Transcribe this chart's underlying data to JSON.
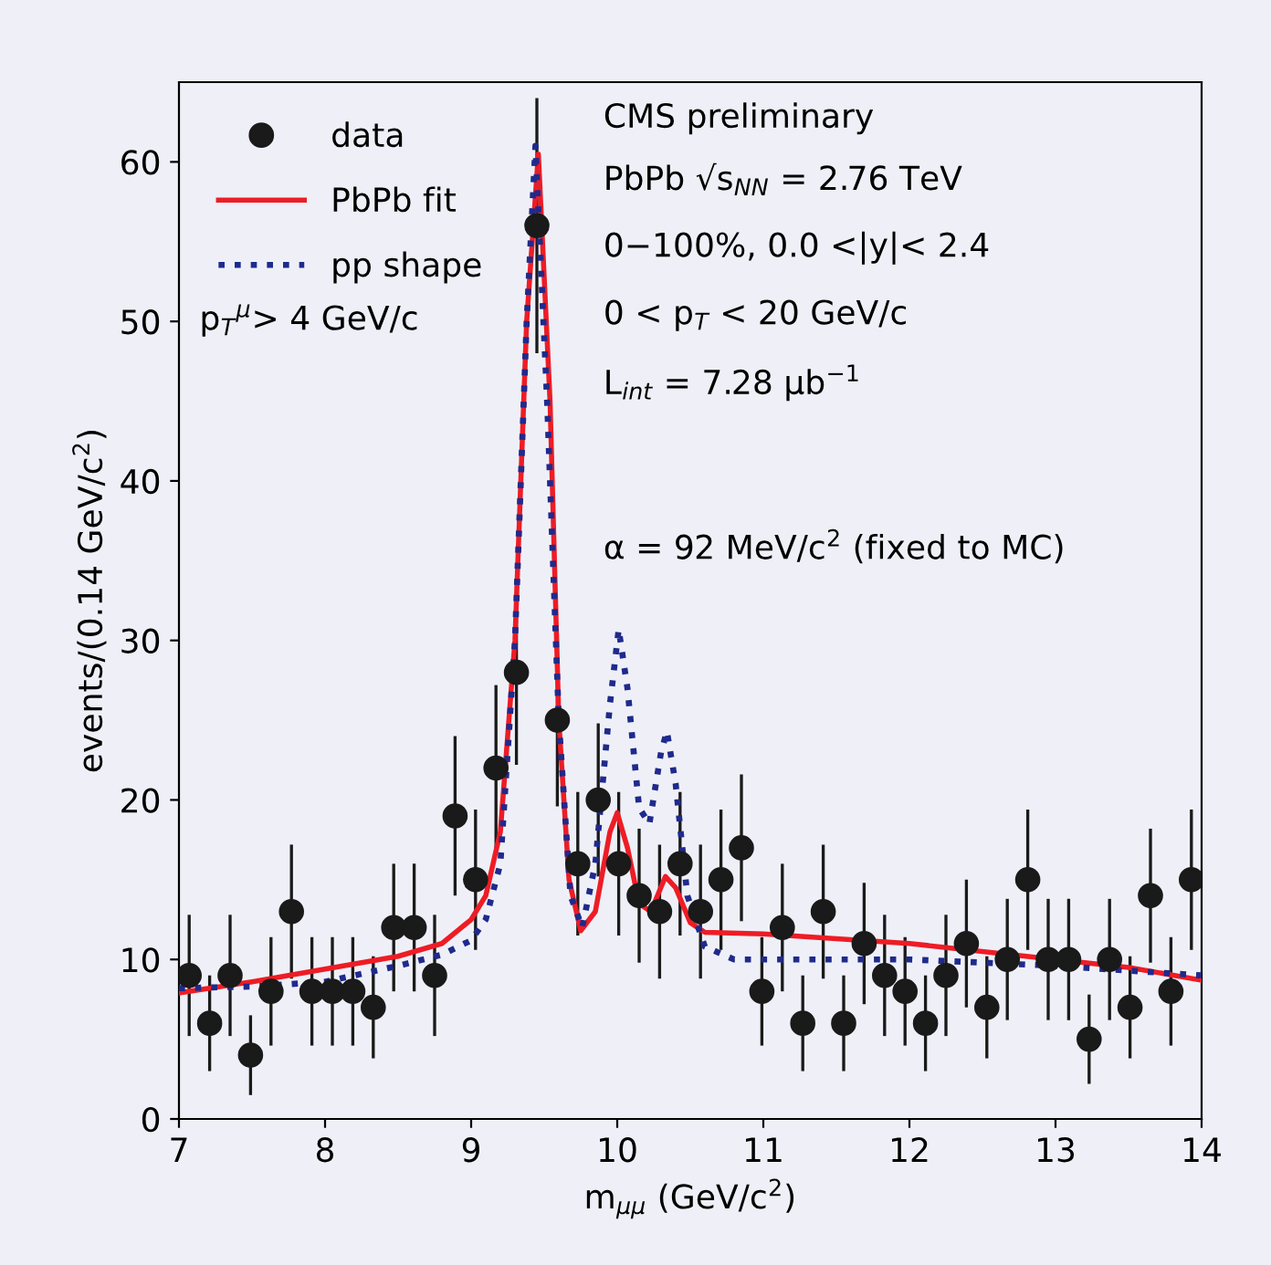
{
  "chart_data": {
    "type": "scatter",
    "xlabel": "m$_{μμ}$ (GeV/c$^{2}$)",
    "ylabel": "events/(0.14 GeV/c$^{2}$)",
    "xlim": [
      7,
      14
    ],
    "xticks": [
      7,
      8,
      9,
      10,
      11,
      12,
      13,
      14
    ],
    "ylim": [
      0,
      65
    ],
    "yticks": [
      0,
      10,
      20,
      30,
      40,
      50,
      60
    ],
    "grid": false,
    "legend": "top left",
    "annotations": [
      "p$_{T}$$^{μ}$> 4 GeV/c",
      "CMS preliminary",
      "PbPb √s$_{NN}$ = 2.76 TeV",
      "0−100%, 0.0 <|y|< 2.4",
      "0 < p$_{T}$ < 20 GeV/c",
      "L$_{int}$ = 7.28 μb$^{−1}$",
      "α = 92 MeV/c$^{2}$ (fixed to MC)"
    ],
    "series": [
      {
        "name": "data",
        "color": "#1a1a1a",
        "marker": "circle",
        "x": [
          7.07,
          7.21,
          7.35,
          7.49,
          7.63,
          7.77,
          7.91,
          8.05,
          8.19,
          8.33,
          8.47,
          8.61,
          8.75,
          8.89,
          9.03,
          9.17,
          9.31,
          9.45,
          9.59,
          9.73,
          9.87,
          10.01,
          10.15,
          10.29,
          10.43,
          10.57,
          10.71,
          10.85,
          10.99,
          11.13,
          11.27,
          11.41,
          11.55,
          11.69,
          11.83,
          11.97,
          12.11,
          12.25,
          12.39,
          12.53,
          12.67,
          12.81,
          12.95,
          13.09,
          13.23,
          13.37,
          13.51,
          13.65,
          13.79,
          13.93
        ],
        "values": [
          9,
          6,
          9,
          4,
          8,
          13,
          8,
          8,
          8,
          7,
          12,
          12,
          9,
          19,
          15,
          22,
          28,
          56,
          25,
          16,
          20,
          16,
          14,
          13,
          16,
          13,
          15,
          17,
          8,
          12,
          6,
          13,
          6,
          11,
          9,
          8,
          6,
          9,
          11,
          7,
          10,
          15,
          10,
          10,
          5,
          10,
          7,
          14,
          8,
          15
        ],
        "errors": [
          3.8,
          3.0,
          3.8,
          2.5,
          3.4,
          4.2,
          3.4,
          3.4,
          3.4,
          3.2,
          4.0,
          4.0,
          3.8,
          5.0,
          4.4,
          5.2,
          5.8,
          8.0,
          5.4,
          4.5,
          4.8,
          4.5,
          4.2,
          4.2,
          4.5,
          4.2,
          4.4,
          4.6,
          3.4,
          4.0,
          3.0,
          4.2,
          3.0,
          3.8,
          3.8,
          3.4,
          3.0,
          3.8,
          4.0,
          3.2,
          3.8,
          4.4,
          3.8,
          3.8,
          2.8,
          3.8,
          3.2,
          4.2,
          3.4,
          4.4
        ]
      },
      {
        "name": "PbPb fit",
        "type": "line",
        "color": "#ee1c25",
        "line_style": "solid",
        "x": [
          7.0,
          7.5,
          8.0,
          8.5,
          8.8,
          9.0,
          9.1,
          9.2,
          9.3,
          9.38,
          9.46,
          9.54,
          9.6,
          9.67,
          9.75,
          9.85,
          9.95,
          10.0,
          10.07,
          10.15,
          10.23,
          10.33,
          10.4,
          10.5,
          10.6,
          11.0,
          12.0,
          13.0,
          13.5,
          14.0
        ],
        "values": [
          7.9,
          8.6,
          9.4,
          10.2,
          11,
          12.5,
          14,
          18,
          30,
          50,
          60.5,
          45,
          25,
          15,
          11.8,
          13,
          18,
          19.2,
          17,
          13.5,
          13,
          15.2,
          14.5,
          12.3,
          11.7,
          11.6,
          11,
          10,
          9.5,
          8.7
        ]
      },
      {
        "name": "pp shape",
        "type": "line",
        "color": "#1f2a8c",
        "line_style": "dotted",
        "x": [
          7.0,
          7.5,
          8.0,
          8.5,
          8.8,
          9.0,
          9.1,
          9.2,
          9.3,
          9.38,
          9.44,
          9.52,
          9.6,
          9.68,
          9.76,
          9.85,
          9.95,
          10.01,
          10.07,
          10.15,
          10.22,
          10.3,
          10.34,
          10.4,
          10.48,
          10.6,
          10.8,
          12.0,
          13.0,
          14.0
        ],
        "values": [
          8.2,
          8.3,
          8.6,
          9.6,
          10.3,
          11.2,
          12.5,
          16,
          30,
          50,
          61,
          45,
          25,
          14,
          12,
          16,
          26,
          30.7,
          27,
          19.5,
          18.5,
          23,
          24.3,
          21,
          14,
          10.8,
          10,
          10,
          9.6,
          9
        ]
      }
    ]
  }
}
